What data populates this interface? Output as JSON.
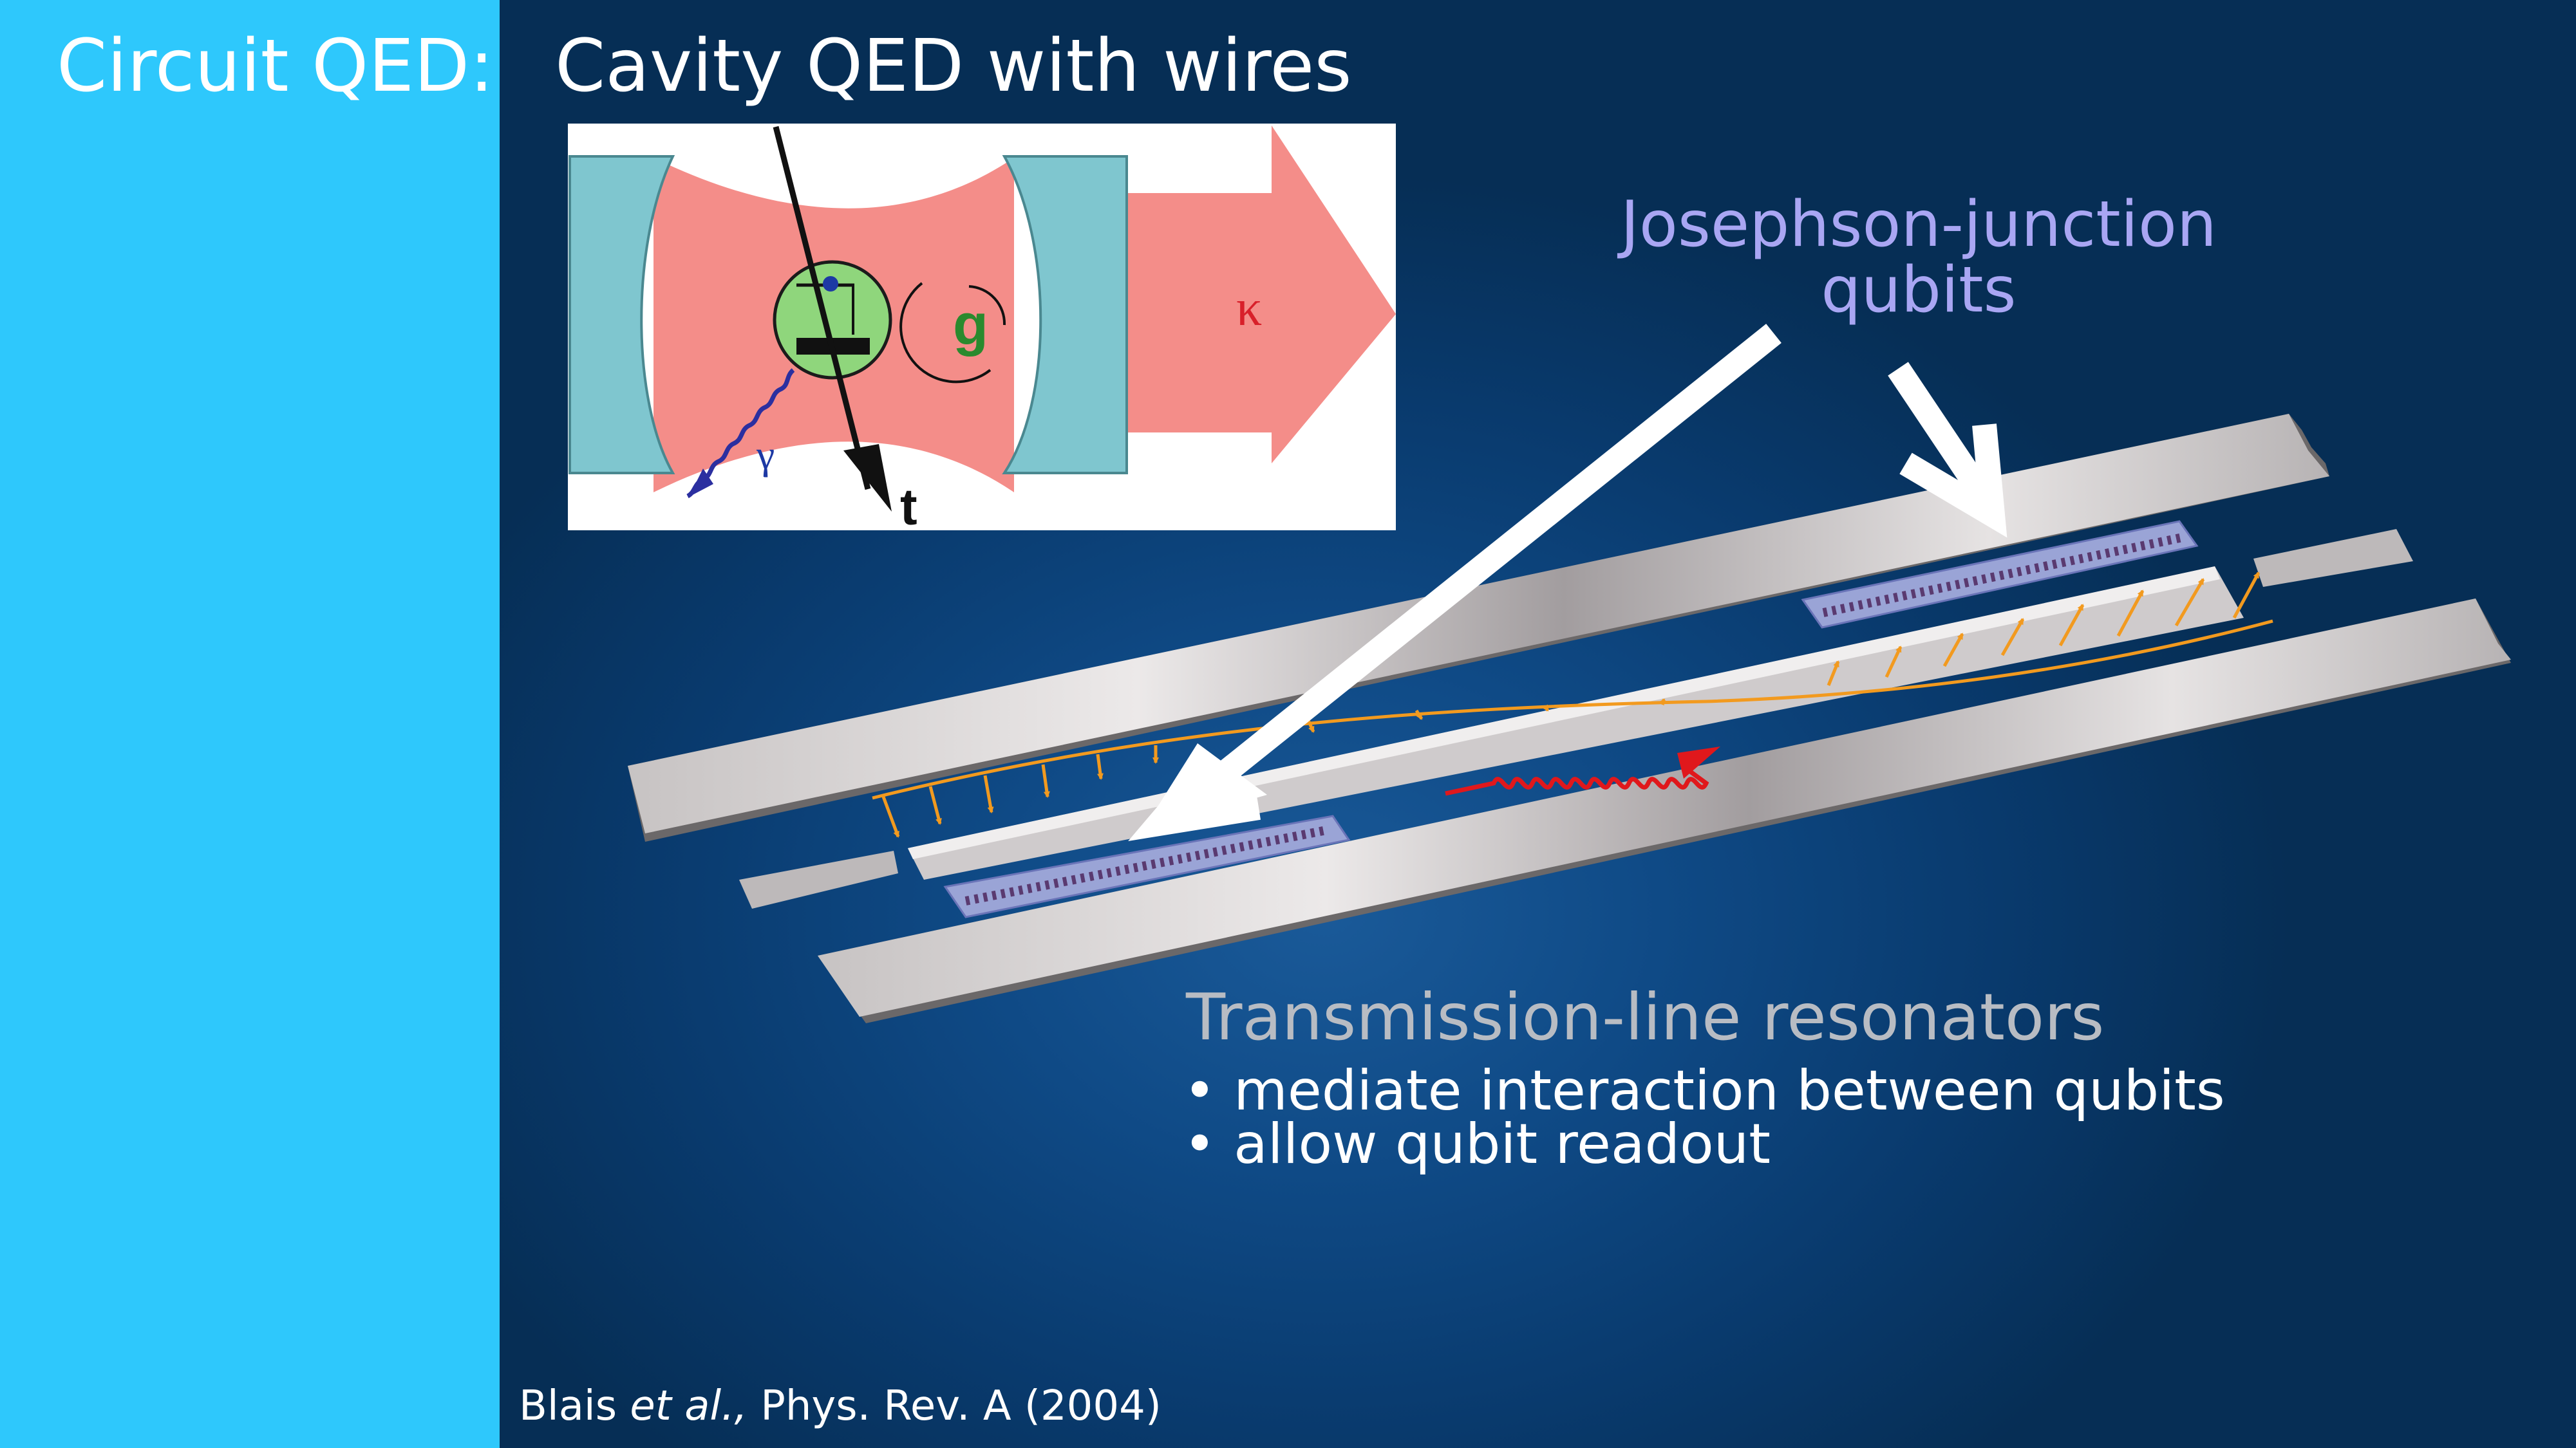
{
  "sidebar": {
    "label": "Circuit QED:"
  },
  "slide": {
    "title": "Cavity QED with wires"
  },
  "cavity_figure": {
    "coupling_symbol": "g",
    "decay_symbol": "κ",
    "spontaneous_symbol": "γ",
    "time_symbol": "t",
    "colors": {
      "mirror": "#7fc6cf",
      "field": "#f48d89",
      "atom": "#8fd67c",
      "kappa": "#d8202a"
    }
  },
  "labels": {
    "jj_line1": "Josephson-junction",
    "jj_line2": "qubits",
    "resonator_heading": "Transmission-line resonators",
    "bullet1": "• mediate interaction between qubits",
    "bullet2": "• allow qubit readout"
  },
  "citation": {
    "authors": "Blais ",
    "etal": "et al.,",
    "journal": " Phys. Rev. A (2004)"
  },
  "colors": {
    "sidebar": "#2ec8fc",
    "background": "#0c4177",
    "field_arrows": "#f29a1f",
    "photon": "#e0181c"
  }
}
